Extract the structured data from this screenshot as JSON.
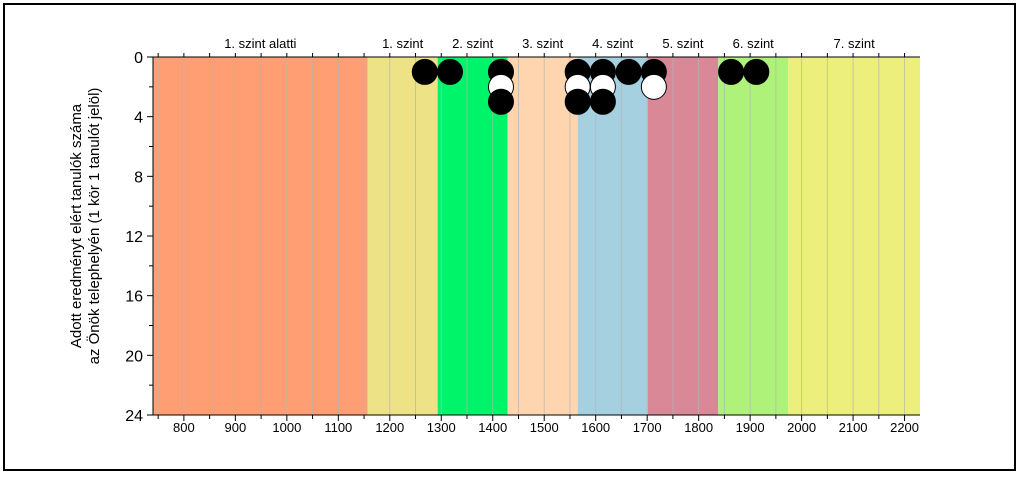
{
  "chart_data": {
    "type": "scatter",
    "ylabel": [
      "Adott eredményt elért tanulók száma",
      "az Önök telephelyén (1 kör 1 tanulót jelöl)"
    ],
    "xlim": [
      740,
      2230
    ],
    "ylim": [
      0,
      24
    ],
    "y_inverted": true,
    "x_ticks": [
      800,
      900,
      1000,
      1100,
      1200,
      1300,
      1400,
      1500,
      1600,
      1700,
      1800,
      1900,
      2000,
      2100,
      2200
    ],
    "y_ticks": [
      0,
      4,
      8,
      12,
      16,
      20,
      24
    ],
    "levels": [
      {
        "label": "1. szint alatti",
        "from": 740,
        "to": 1157,
        "color": "#ff9e73"
      },
      {
        "label": "1. szint",
        "from": 1157,
        "to": 1293,
        "color": "#ede386"
      },
      {
        "label": "2. szint",
        "from": 1293,
        "to": 1429,
        "color": "#00f46a"
      },
      {
        "label": "3. szint",
        "from": 1429,
        "to": 1565,
        "color": "#ffd5b0"
      },
      {
        "label": "4. szint",
        "from": 1565,
        "to": 1701,
        "color": "#a5d0e0"
      },
      {
        "label": "5. szint",
        "from": 1701,
        "to": 1838,
        "color": "#d98898"
      },
      {
        "label": "6. szint",
        "from": 1838,
        "to": 1974,
        "color": "#aef27a"
      },
      {
        "label": "7. szint",
        "from": 1974,
        "to": 2230,
        "color": "#ecef7c"
      }
    ],
    "grid": true,
    "points": [
      {
        "x": 1268,
        "y": 1,
        "fill": "black"
      },
      {
        "x": 1317,
        "y": 1,
        "fill": "black"
      },
      {
        "x": 1416,
        "y": 1,
        "fill": "black"
      },
      {
        "x": 1416,
        "y": 2,
        "fill": "white"
      },
      {
        "x": 1416,
        "y": 3,
        "fill": "black"
      },
      {
        "x": 1565,
        "y": 1,
        "fill": "black"
      },
      {
        "x": 1565,
        "y": 2,
        "fill": "white"
      },
      {
        "x": 1565,
        "y": 3,
        "fill": "black"
      },
      {
        "x": 1614,
        "y": 1,
        "fill": "black"
      },
      {
        "x": 1614,
        "y": 2,
        "fill": "white"
      },
      {
        "x": 1614,
        "y": 3,
        "fill": "black"
      },
      {
        "x": 1664,
        "y": 1,
        "fill": "black"
      },
      {
        "x": 1713,
        "y": 1,
        "fill": "black"
      },
      {
        "x": 1713,
        "y": 2,
        "fill": "white"
      },
      {
        "x": 1863,
        "y": 1,
        "fill": "black"
      },
      {
        "x": 1912,
        "y": 1,
        "fill": "black"
      }
    ]
  }
}
